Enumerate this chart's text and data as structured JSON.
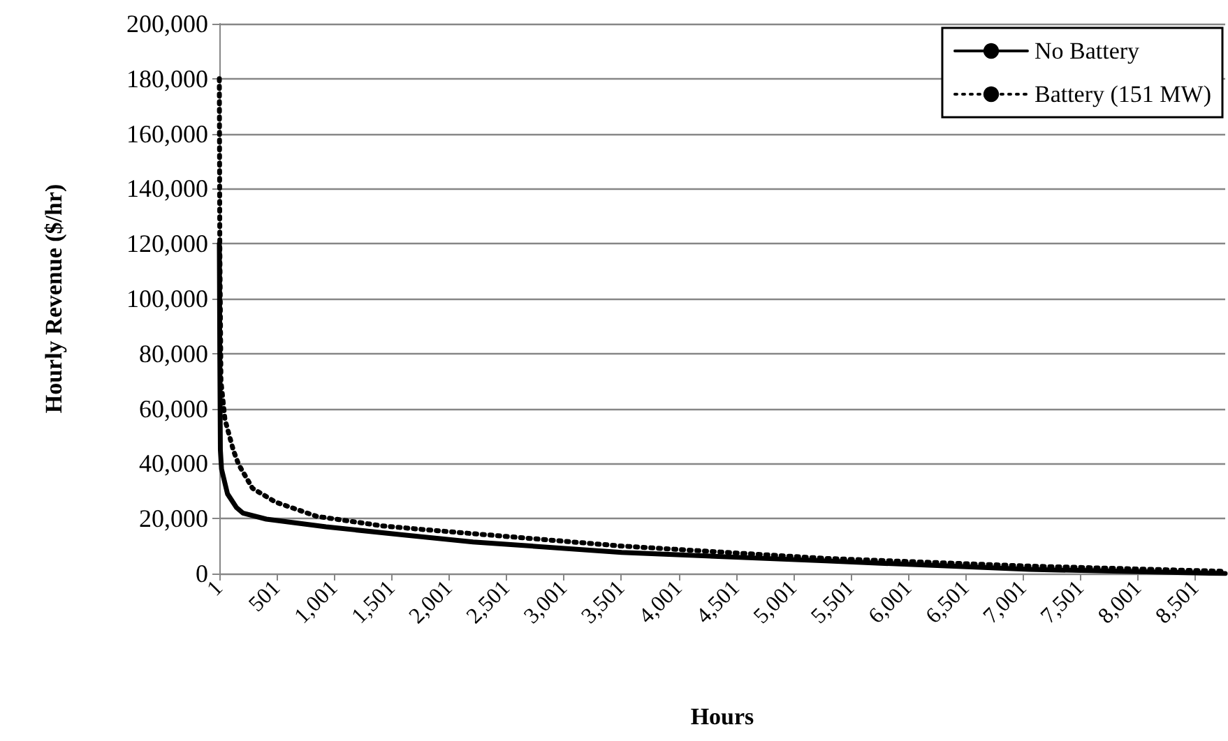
{
  "chart_data": {
    "type": "line",
    "xlabel": "Hours",
    "ylabel": "Hourly Revenue ($/hr)",
    "xlim": [
      1,
      8760
    ],
    "ylim": [
      0,
      200000
    ],
    "xticks": [
      {
        "value": 1,
        "label": "1"
      },
      {
        "value": 501,
        "label": "501"
      },
      {
        "value": 1001,
        "label": "1,001"
      },
      {
        "value": 1501,
        "label": "1,501"
      },
      {
        "value": 2001,
        "label": "2,001"
      },
      {
        "value": 2501,
        "label": "2,501"
      },
      {
        "value": 3001,
        "label": "3,001"
      },
      {
        "value": 3501,
        "label": "3,501"
      },
      {
        "value": 4001,
        "label": "4,001"
      },
      {
        "value": 4501,
        "label": "4,501"
      },
      {
        "value": 5001,
        "label": "5,001"
      },
      {
        "value": 5501,
        "label": "5,501"
      },
      {
        "value": 6001,
        "label": "6,001"
      },
      {
        "value": 6501,
        "label": "6,501"
      },
      {
        "value": 7001,
        "label": "7,001"
      },
      {
        "value": 7501,
        "label": "7,501"
      },
      {
        "value": 8001,
        "label": "8,001"
      },
      {
        "value": 8501,
        "label": "8,501"
      }
    ],
    "yticks": [
      {
        "value": 0,
        "label": "0"
      },
      {
        "value": 20000,
        "label": "20,000"
      },
      {
        "value": 40000,
        "label": "40,000"
      },
      {
        "value": 60000,
        "label": "60,000"
      },
      {
        "value": 80000,
        "label": "80,000"
      },
      {
        "value": 100000,
        "label": "100,000"
      },
      {
        "value": 120000,
        "label": "120,000"
      },
      {
        "value": 140000,
        "label": "140,000"
      },
      {
        "value": 160000,
        "label": "160,000"
      },
      {
        "value": 180000,
        "label": "180,000"
      },
      {
        "value": 200000,
        "label": "200,000"
      }
    ],
    "grid": "y",
    "legend": "top right",
    "marker": "none",
    "series": [
      {
        "name": "No Battery",
        "color": "#000000",
        "line_style": "solid",
        "x": [
          1,
          5,
          10,
          20,
          72,
          150,
          207,
          410,
          930,
          1610,
          2210,
          3505,
          5280,
          7055,
          8000,
          8760
        ],
        "values": [
          120000,
          80000,
          45000,
          38000,
          29000,
          24000,
          22000,
          19800,
          17000,
          14000,
          11500,
          7700,
          4600,
          1500,
          700,
          0
        ]
      },
      {
        "name": "Battery (151 MW)",
        "color": "#000000",
        "line_style": "dotted",
        "x": [
          1,
          5,
          15,
          50,
          124,
          170,
          290,
          490,
          850,
          1410,
          1780,
          2500,
          3505,
          5280,
          7055,
          8760
        ],
        "values": [
          180000,
          120000,
          70000,
          56000,
          44700,
          39600,
          31000,
          26000,
          20800,
          17400,
          16000,
          13500,
          10000,
          5500,
          2700,
          800
        ]
      }
    ]
  }
}
